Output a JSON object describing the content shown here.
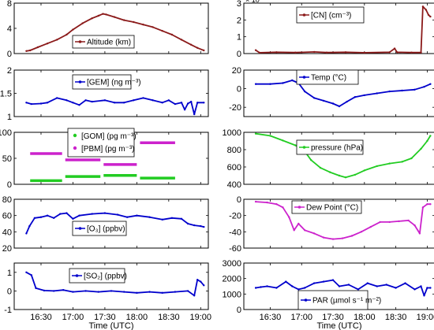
{
  "figure": {
    "x_ticks": [
      "16:30",
      "17:00",
      "17:30",
      "18:00",
      "18:30",
      "19:00"
    ],
    "xlabel": "Time (UTC)"
  },
  "chart_data": [
    {
      "id": "altitude",
      "type": "line",
      "column": "left",
      "ylim": [
        0,
        8
      ],
      "yticks": [
        "0",
        "4",
        "8"
      ],
      "ytick_values": [
        0,
        4,
        8
      ],
      "legend": "Altitude (km)",
      "series": [
        {
          "name": "Altitude (km)",
          "color": "#8b1a1a",
          "marker": "dot",
          "points": [
            [
              16.27,
              0.4
            ],
            [
              16.33,
              0.5
            ],
            [
              16.45,
              1.0
            ],
            [
              16.6,
              1.6
            ],
            [
              16.75,
              2.2
            ],
            [
              16.9,
              3.0
            ],
            [
              17.0,
              3.8
            ],
            [
              17.15,
              4.8
            ],
            [
              17.3,
              5.6
            ],
            [
              17.4,
              6.0
            ],
            [
              17.47,
              6.3
            ],
            [
              17.52,
              6.2
            ],
            [
              17.65,
              5.8
            ],
            [
              17.8,
              5.3
            ],
            [
              17.95,
              5.0
            ],
            [
              18.1,
              4.6
            ],
            [
              18.25,
              4.2
            ],
            [
              18.4,
              3.6
            ],
            [
              18.55,
              3.0
            ],
            [
              18.7,
              2.2
            ],
            [
              18.85,
              1.4
            ],
            [
              18.95,
              0.9
            ],
            [
              19.05,
              0.5
            ]
          ]
        }
      ]
    },
    {
      "id": "cn",
      "type": "line",
      "column": "right",
      "ylim": [
        0,
        3
      ],
      "yticks": [
        "0",
        "1",
        "2",
        "3"
      ],
      "ytick_values": [
        0,
        1,
        2,
        3
      ],
      "exponent_label": "× 10",
      "legend": "[CN] (cm⁻³)",
      "series": [
        {
          "name": "[CN] (cm⁻³)",
          "color": "#8b1a1a",
          "marker": "dot",
          "points": [
            [
              16.27,
              0.2
            ],
            [
              16.33,
              0.05
            ],
            [
              16.6,
              0.08
            ],
            [
              16.9,
              0.06
            ],
            [
              17.2,
              0.1
            ],
            [
              17.4,
              0.06
            ],
            [
              17.7,
              0.08
            ],
            [
              18.0,
              0.05
            ],
            [
              18.4,
              0.08
            ],
            [
              18.48,
              0.3
            ],
            [
              18.52,
              0.08
            ],
            [
              18.75,
              0.06
            ],
            [
              18.9,
              0.06
            ],
            [
              18.93,
              2.8
            ],
            [
              18.98,
              2.6
            ],
            [
              19.02,
              2.3
            ],
            [
              19.05,
              2.2
            ]
          ]
        }
      ]
    },
    {
      "id": "gem",
      "type": "line",
      "column": "left",
      "ylim": [
        1,
        2
      ],
      "yticks": [
        "1",
        "1.5",
        "2"
      ],
      "ytick_values": [
        1,
        1.5,
        2
      ],
      "legend": "[GEM] (ng m⁻³)",
      "series": [
        {
          "name": "[GEM] (ng m⁻³)",
          "color": "#0000cc",
          "marker": "dot",
          "points": [
            [
              16.27,
              1.3
            ],
            [
              16.35,
              1.27
            ],
            [
              16.5,
              1.28
            ],
            [
              16.6,
              1.3
            ],
            [
              16.75,
              1.4
            ],
            [
              16.9,
              1.35
            ],
            [
              17.0,
              1.3
            ],
            [
              17.1,
              1.25
            ],
            [
              17.2,
              1.35
            ],
            [
              17.3,
              1.32
            ],
            [
              17.5,
              1.35
            ],
            [
              17.65,
              1.3
            ],
            [
              17.8,
              1.3
            ],
            [
              17.95,
              1.35
            ],
            [
              18.1,
              1.4
            ],
            [
              18.25,
              1.35
            ],
            [
              18.4,
              1.3
            ],
            [
              18.5,
              1.35
            ],
            [
              18.6,
              1.27
            ],
            [
              18.7,
              1.3
            ],
            [
              18.75,
              1.15
            ],
            [
              18.8,
              1.28
            ],
            [
              18.85,
              1.32
            ],
            [
              18.9,
              1.05
            ],
            [
              18.95,
              1.3
            ],
            [
              19.05,
              1.3
            ]
          ]
        }
      ]
    },
    {
      "id": "temp",
      "type": "line",
      "column": "right",
      "ylim": [
        -30,
        20
      ],
      "yticks": [
        "-20",
        "0",
        "20"
      ],
      "ytick_values": [
        -20,
        0,
        20
      ],
      "legend": "Temp (°C)",
      "series": [
        {
          "name": "Temp (°C)",
          "color": "#0000cc",
          "marker": "dot",
          "points": [
            [
              16.27,
              5
            ],
            [
              16.5,
              5
            ],
            [
              16.7,
              6
            ],
            [
              16.85,
              9
            ],
            [
              16.95,
              6
            ],
            [
              17.05,
              -3
            ],
            [
              17.2,
              -10
            ],
            [
              17.35,
              -13
            ],
            [
              17.5,
              -16
            ],
            [
              17.6,
              -19
            ],
            [
              17.72,
              -14
            ],
            [
              17.85,
              -9
            ],
            [
              18.0,
              -7
            ],
            [
              18.2,
              -5
            ],
            [
              18.4,
              -3
            ],
            [
              18.6,
              -2
            ],
            [
              18.8,
              -1
            ],
            [
              18.95,
              2
            ],
            [
              19.05,
              5
            ]
          ]
        }
      ]
    },
    {
      "id": "gom_pbm",
      "type": "step",
      "column": "left",
      "ylim": [
        0,
        100
      ],
      "yticks": [
        "0",
        "50",
        "100"
      ],
      "ytick_values": [
        0,
        50,
        100
      ],
      "series": [
        {
          "name": "[GOM] (pg m⁻³)",
          "color": "#22cc22",
          "marker": "dot",
          "segments": [
            [
              16.33,
              16.83,
              7
            ],
            [
              16.88,
              17.43,
              15
            ],
            [
              17.48,
              18.0,
              17
            ],
            [
              18.05,
              18.6,
              12
            ]
          ]
        },
        {
          "name": "[PBM] (pg m⁻³)",
          "color": "#cc22cc",
          "marker": "dot",
          "segments": [
            [
              16.33,
              16.83,
              59
            ],
            [
              16.88,
              17.43,
              47
            ],
            [
              17.48,
              18.0,
              38
            ],
            [
              18.05,
              18.6,
              80
            ]
          ]
        }
      ]
    },
    {
      "id": "pressure",
      "type": "line",
      "column": "right",
      "ylim": [
        400,
        1000
      ],
      "yticks": [
        "400",
        "600",
        "800",
        "1000"
      ],
      "ytick_values": [
        400,
        600,
        800,
        1000
      ],
      "legend": "pressure (hPa)",
      "series": [
        {
          "name": "pressure (hPa)",
          "color": "#22cc22",
          "marker": "dot",
          "points": [
            [
              16.27,
              985
            ],
            [
              16.5,
              960
            ],
            [
              16.7,
              905
            ],
            [
              16.9,
              850
            ],
            [
              17.05,
              780
            ],
            [
              17.15,
              680
            ],
            [
              17.3,
              590
            ],
            [
              17.45,
              540
            ],
            [
              17.6,
              500
            ],
            [
              17.7,
              480
            ],
            [
              17.85,
              510
            ],
            [
              18.0,
              560
            ],
            [
              18.2,
              610
            ],
            [
              18.4,
              640
            ],
            [
              18.6,
              660
            ],
            [
              18.75,
              700
            ],
            [
              18.9,
              810
            ],
            [
              19.0,
              900
            ],
            [
              19.05,
              960
            ]
          ]
        }
      ]
    },
    {
      "id": "o3",
      "type": "line",
      "column": "left",
      "ylim": [
        20,
        80
      ],
      "yticks": [
        "20",
        "40",
        "60",
        "80"
      ],
      "ytick_values": [
        20,
        40,
        60,
        80
      ],
      "legend": "[O₃] (ppbv)",
      "series": [
        {
          "name": "[O₃] (ppbv)",
          "color": "#0000cc",
          "marker": "dot",
          "points": [
            [
              16.27,
              38
            ],
            [
              16.32,
              47
            ],
            [
              16.4,
              57
            ],
            [
              16.5,
              58
            ],
            [
              16.6,
              60
            ],
            [
              16.7,
              57
            ],
            [
              16.8,
              62
            ],
            [
              16.9,
              63
            ],
            [
              17.0,
              56
            ],
            [
              17.1,
              60
            ],
            [
              17.3,
              62
            ],
            [
              17.5,
              63
            ],
            [
              17.7,
              61
            ],
            [
              17.85,
              58
            ],
            [
              18.0,
              60
            ],
            [
              18.2,
              58
            ],
            [
              18.4,
              55
            ],
            [
              18.55,
              57
            ],
            [
              18.7,
              56
            ],
            [
              18.8,
              50
            ],
            [
              18.9,
              48
            ],
            [
              19.0,
              47
            ],
            [
              19.05,
              46
            ]
          ]
        }
      ]
    },
    {
      "id": "dewpoint",
      "type": "line",
      "column": "right",
      "ylim": [
        -60,
        0
      ],
      "yticks": [
        "-60",
        "-40",
        "-20",
        "0"
      ],
      "ytick_values": [
        -60,
        -40,
        -20,
        0
      ],
      "legend": "Dew Point (°C)",
      "series": [
        {
          "name": "Dew Point (°C)",
          "color": "#cc22cc",
          "marker": "dot",
          "points": [
            [
              16.27,
              -3
            ],
            [
              16.45,
              -4
            ],
            [
              16.6,
              -6
            ],
            [
              16.7,
              -10
            ],
            [
              16.8,
              -22
            ],
            [
              16.88,
              -38
            ],
            [
              16.95,
              -30
            ],
            [
              17.05,
              -38
            ],
            [
              17.2,
              -42
            ],
            [
              17.35,
              -47
            ],
            [
              17.5,
              -49
            ],
            [
              17.65,
              -48
            ],
            [
              17.8,
              -45
            ],
            [
              17.95,
              -40
            ],
            [
              18.1,
              -34
            ],
            [
              18.25,
              -28
            ],
            [
              18.4,
              -28
            ],
            [
              18.55,
              -27
            ],
            [
              18.7,
              -26
            ],
            [
              18.8,
              -32
            ],
            [
              18.88,
              -42
            ],
            [
              18.93,
              -10
            ],
            [
              19.0,
              -6
            ],
            [
              19.05,
              -6
            ]
          ]
        }
      ]
    },
    {
      "id": "so2",
      "type": "line",
      "column": "left",
      "ylim": [
        -1,
        1.5
      ],
      "yticks": [
        "-1",
        "0",
        "1"
      ],
      "ytick_values": [
        -1,
        0,
        1
      ],
      "legend": "[SO₂] (ppbv)",
      "series": [
        {
          "name": "[SO₂] (ppbv)",
          "color": "#0000cc",
          "marker": "dot",
          "points": [
            [
              16.27,
              1.0
            ],
            [
              16.35,
              0.85
            ],
            [
              16.42,
              0.15
            ],
            [
              16.55,
              0.02
            ],
            [
              16.7,
              0.0
            ],
            [
              16.85,
              0.05
            ],
            [
              17.0,
              -0.05
            ],
            [
              17.2,
              0.0
            ],
            [
              17.4,
              -0.05
            ],
            [
              17.6,
              0.0
            ],
            [
              17.8,
              -0.05
            ],
            [
              18.0,
              -0.1
            ],
            [
              18.2,
              -0.05
            ],
            [
              18.4,
              -0.1
            ],
            [
              18.6,
              -0.05
            ],
            [
              18.8,
              0.0
            ],
            [
              18.9,
              -0.25
            ],
            [
              18.95,
              0.6
            ],
            [
              19.0,
              0.5
            ],
            [
              19.05,
              0.3
            ]
          ]
        }
      ]
    },
    {
      "id": "par",
      "type": "line",
      "column": "right",
      "ylim": [
        0,
        3000
      ],
      "yticks": [
        "0",
        "1000",
        "2000",
        "3000"
      ],
      "ytick_values": [
        0,
        1000,
        2000,
        3000
      ],
      "legend": "PAR (µmol s⁻¹ m⁻²)",
      "series": [
        {
          "name": "PAR (µmol s⁻¹ m⁻²)",
          "color": "#0000cc",
          "marker": "dot",
          "points": [
            [
              16.27,
              1400
            ],
            [
              16.35,
              1450
            ],
            [
              16.45,
              1500
            ],
            [
              16.6,
              1400
            ],
            [
              16.75,
              1800
            ],
            [
              16.85,
              1500
            ],
            [
              16.95,
              1300
            ],
            [
              17.05,
              1400
            ],
            [
              17.2,
              1700
            ],
            [
              17.35,
              1800
            ],
            [
              17.5,
              1900
            ],
            [
              17.6,
              1500
            ],
            [
              17.75,
              1600
            ],
            [
              17.9,
              1300
            ],
            [
              18.05,
              1700
            ],
            [
              18.2,
              1500
            ],
            [
              18.35,
              1600
            ],
            [
              18.5,
              1400
            ],
            [
              18.65,
              1700
            ],
            [
              18.8,
              1300
            ],
            [
              18.9,
              1500
            ],
            [
              18.95,
              900
            ],
            [
              19.0,
              1400
            ],
            [
              19.05,
              1400
            ]
          ]
        }
      ]
    }
  ]
}
